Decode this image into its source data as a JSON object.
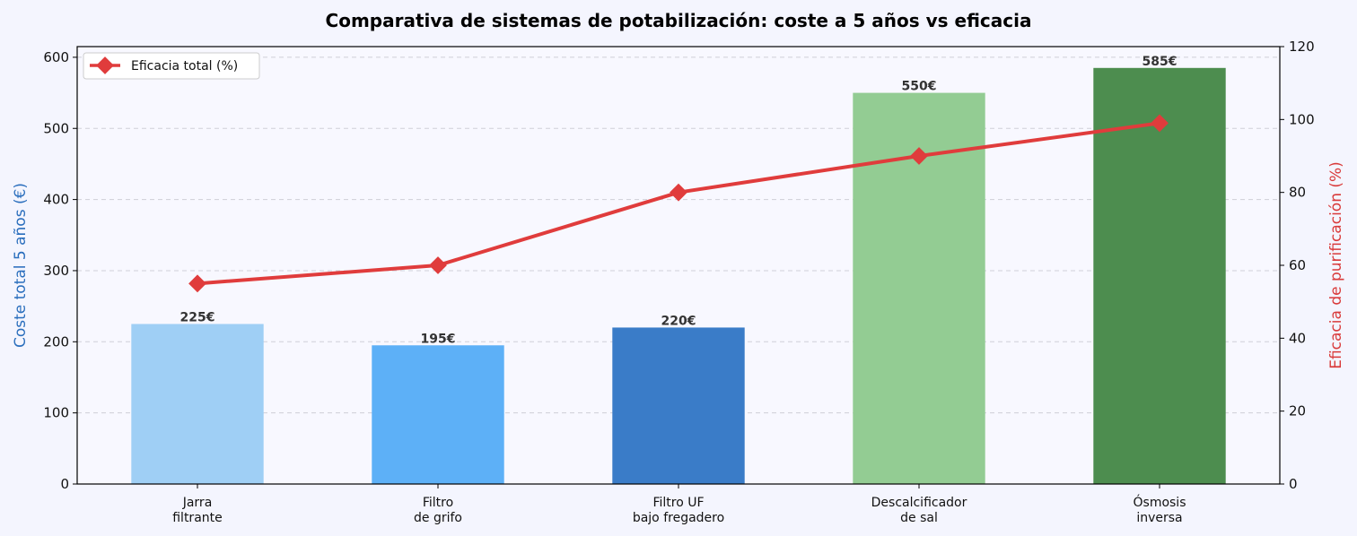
{
  "chart_data": {
    "type": "bar",
    "title": "Comparativa de sistemas de potabilización: coste a 5 años vs eficacia",
    "categories": [
      "Jarra\nfiltrante",
      "Filtro\nde grifo",
      "Filtro UF\nbajo fregadero",
      "Descalcificador\nde sal",
      "Ósmosis\ninversa"
    ],
    "bar_series": {
      "values": [
        225,
        195,
        220,
        550,
        585
      ],
      "labels": [
        "225€",
        "195€",
        "220€",
        "550€",
        "585€"
      ],
      "colors": [
        "#9fcff5",
        "#5db0f7",
        "#3a7cc8",
        "#93cc93",
        "#4d8d4f"
      ]
    },
    "line_series": {
      "name": "Eficacia total (%)",
      "values": [
        55,
        60,
        80,
        90,
        99
      ],
      "color": "#e03c3c"
    },
    "ylabel_left": "Coste total 5 años (€)",
    "ylabel_right": "Eficacia de purificación (%)",
    "ylim_left": [
      0,
      615
    ],
    "ylim_right": [
      0,
      120
    ],
    "yticks_left": [
      0,
      100,
      200,
      300,
      400,
      500,
      600
    ],
    "yticks_right": [
      0,
      20,
      40,
      60,
      80,
      100,
      120
    ],
    "grid": true,
    "legend_position": "top-left"
  }
}
